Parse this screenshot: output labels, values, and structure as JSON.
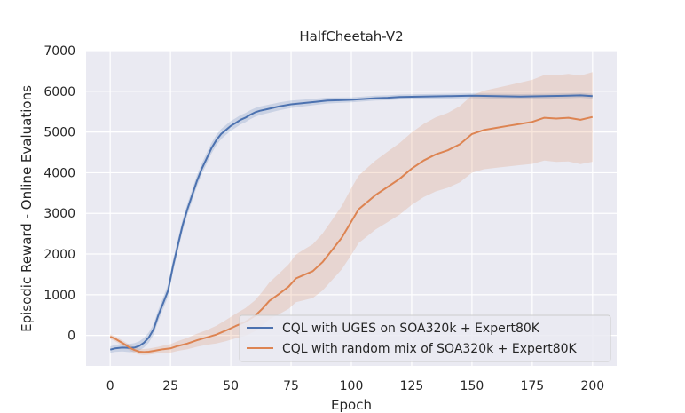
{
  "chart_data": {
    "type": "line",
    "title": "HalfCheetah-V2",
    "xlabel": "Epoch",
    "ylabel": "Episodic Reward - Online Evaluations",
    "xlim": [
      -10,
      210
    ],
    "ylim": [
      -750,
      7000
    ],
    "xticks": [
      0,
      25,
      50,
      75,
      100,
      125,
      150,
      175,
      200
    ],
    "yticks": [
      0,
      1000,
      2000,
      3000,
      4000,
      5000,
      6000,
      7000
    ],
    "grid": true,
    "legend_position": "lower-right",
    "background": "#eaeaf2",
    "series": [
      {
        "name": "CQL with UGES on SOA320k + Expert80K",
        "color": "#4c72b0",
        "points": [
          [
            0,
            -350
          ],
          [
            2,
            -320
          ],
          [
            5,
            -300
          ],
          [
            8,
            -310
          ],
          [
            10,
            -300
          ],
          [
            12,
            -260
          ],
          [
            14,
            -180
          ],
          [
            16,
            -50
          ],
          [
            18,
            150
          ],
          [
            20,
            500
          ],
          [
            22,
            800
          ],
          [
            24,
            1100
          ],
          [
            26,
            1700
          ],
          [
            28,
            2200
          ],
          [
            30,
            2700
          ],
          [
            32,
            3100
          ],
          [
            34,
            3450
          ],
          [
            36,
            3800
          ],
          [
            38,
            4100
          ],
          [
            40,
            4350
          ],
          [
            42,
            4600
          ],
          [
            44,
            4800
          ],
          [
            46,
            4950
          ],
          [
            48,
            5050
          ],
          [
            50,
            5150
          ],
          [
            52,
            5220
          ],
          [
            54,
            5300
          ],
          [
            56,
            5350
          ],
          [
            58,
            5420
          ],
          [
            60,
            5480
          ],
          [
            62,
            5520
          ],
          [
            65,
            5560
          ],
          [
            68,
            5600
          ],
          [
            70,
            5630
          ],
          [
            75,
            5680
          ],
          [
            80,
            5710
          ],
          [
            85,
            5740
          ],
          [
            90,
            5770
          ],
          [
            95,
            5780
          ],
          [
            100,
            5790
          ],
          [
            105,
            5810
          ],
          [
            110,
            5830
          ],
          [
            115,
            5840
          ],
          [
            120,
            5860
          ],
          [
            130,
            5870
          ],
          [
            140,
            5880
          ],
          [
            150,
            5890
          ],
          [
            160,
            5880
          ],
          [
            170,
            5870
          ],
          [
            180,
            5880
          ],
          [
            190,
            5890
          ],
          [
            195,
            5900
          ],
          [
            200,
            5880
          ]
        ],
        "band": [
          [
            0,
            80
          ],
          [
            25,
            150
          ],
          [
            50,
            120
          ],
          [
            100,
            60
          ],
          [
            150,
            60
          ],
          [
            200,
            60
          ]
        ]
      },
      {
        "name": "CQL with random mix of SOA320k + Expert80K",
        "color": "#dd8452",
        "points": [
          [
            0,
            -30
          ],
          [
            2,
            -80
          ],
          [
            4,
            -150
          ],
          [
            6,
            -220
          ],
          [
            8,
            -300
          ],
          [
            10,
            -360
          ],
          [
            12,
            -400
          ],
          [
            14,
            -410
          ],
          [
            16,
            -400
          ],
          [
            18,
            -380
          ],
          [
            20,
            -360
          ],
          [
            22,
            -340
          ],
          [
            25,
            -320
          ],
          [
            28,
            -260
          ],
          [
            32,
            -200
          ],
          [
            36,
            -120
          ],
          [
            40,
            -50
          ],
          [
            44,
            20
          ],
          [
            48,
            120
          ],
          [
            52,
            230
          ],
          [
            56,
            330
          ],
          [
            60,
            480
          ],
          [
            63,
            650
          ],
          [
            66,
            850
          ],
          [
            70,
            1020
          ],
          [
            74,
            1200
          ],
          [
            77,
            1400
          ],
          [
            80,
            1480
          ],
          [
            84,
            1580
          ],
          [
            88,
            1800
          ],
          [
            92,
            2100
          ],
          [
            96,
            2400
          ],
          [
            100,
            2800
          ],
          [
            103,
            3100
          ],
          [
            106,
            3250
          ],
          [
            110,
            3450
          ],
          [
            115,
            3650
          ],
          [
            120,
            3850
          ],
          [
            125,
            4100
          ],
          [
            130,
            4300
          ],
          [
            135,
            4450
          ],
          [
            140,
            4550
          ],
          [
            145,
            4700
          ],
          [
            148,
            4850
          ],
          [
            150,
            4950
          ],
          [
            155,
            5050
          ],
          [
            160,
            5100
          ],
          [
            165,
            5150
          ],
          [
            170,
            5200
          ],
          [
            175,
            5250
          ],
          [
            180,
            5350
          ],
          [
            185,
            5330
          ],
          [
            190,
            5350
          ],
          [
            195,
            5300
          ],
          [
            200,
            5370
          ]
        ],
        "band": [
          [
            0,
            60
          ],
          [
            20,
            80
          ],
          [
            40,
            180
          ],
          [
            60,
            380
          ],
          [
            80,
            620
          ],
          [
            100,
            820
          ],
          [
            120,
            880
          ],
          [
            140,
            920
          ],
          [
            160,
            980
          ],
          [
            180,
            1050
          ],
          [
            200,
            1100
          ]
        ]
      }
    ]
  }
}
